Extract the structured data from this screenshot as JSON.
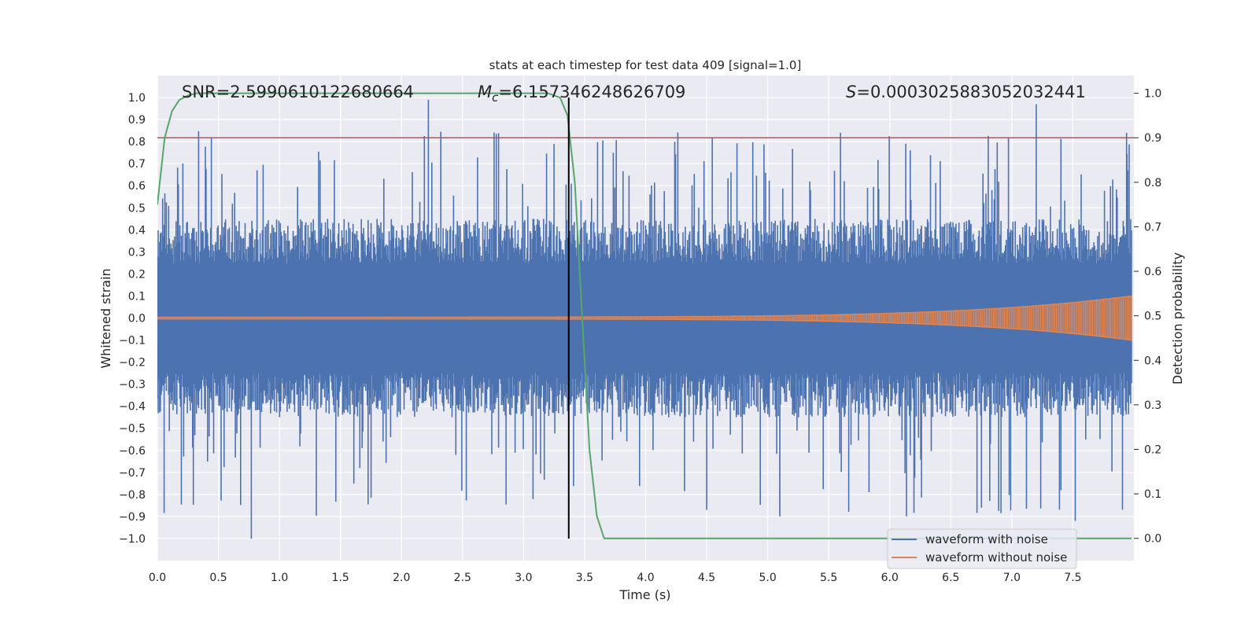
{
  "chart_data": {
    "type": "line",
    "title": "stats at each timestep for test data 409 [signal=1.0]",
    "xlabel": "Time (s)",
    "ylabel": "Whitened strain",
    "y2label": "Detection probability",
    "xlim": [
      0.0,
      8.0
    ],
    "ylim": [
      -1.1,
      1.1
    ],
    "y2lim": [
      -0.05,
      1.04
    ],
    "xticks": [
      "0.0",
      "0.5",
      "1.0",
      "1.5",
      "2.0",
      "2.5",
      "3.0",
      "3.5",
      "4.0",
      "4.5",
      "5.0",
      "5.5",
      "6.0",
      "6.5",
      "7.0",
      "7.5"
    ],
    "yticks": [
      "1.0",
      "0.9",
      "0.8",
      "0.7",
      "0.6",
      "0.5",
      "0.4",
      "0.3",
      "0.2",
      "0.1",
      "0.0",
      "−0.1",
      "−0.2",
      "−0.3",
      "−0.4",
      "−0.5",
      "−0.6",
      "−0.7",
      "−0.8",
      "−0.9",
      "−1.0"
    ],
    "y2ticks": [
      "1.0",
      "0.9",
      "0.8",
      "0.7",
      "0.6",
      "0.5",
      "0.4",
      "0.3",
      "0.2",
      "0.1",
      "0.0"
    ],
    "annotations": {
      "snr": "SNR=2.5990610122680664",
      "mc_symbol": "M",
      "mc_sub": "c",
      "mc_value": "=6.157346248626709",
      "s_symbol": "S",
      "s_value": "=0.0003025883052032441"
    },
    "threshold_line": {
      "y2": 0.9,
      "color": "#c44e52"
    },
    "merger_time": 3.37,
    "series": [
      {
        "name": "waveform with noise",
        "color": "#4c72b0",
        "typical_envelope": [
          -0.45,
          0.45
        ],
        "max_abs": 1.0
      },
      {
        "name": "waveform without noise",
        "color": "#dd8452",
        "start_amplitude": 0.004,
        "end_amplitude": 0.1
      },
      {
        "name": "detection probability",
        "color": "#55a868",
        "axis": "y2",
        "x": [
          0.0,
          0.06,
          0.12,
          0.18,
          0.25,
          0.32,
          0.4,
          0.5,
          1.0,
          2.0,
          3.0,
          3.2,
          3.3,
          3.36,
          3.42,
          3.48,
          3.54,
          3.6,
          3.66,
          3.72,
          3.8,
          4.0,
          7.98
        ],
        "y": [
          0.75,
          0.9,
          0.96,
          0.985,
          0.995,
          1.0,
          1.0,
          1.0,
          1.0,
          1.0,
          1.0,
          1.0,
          0.99,
          0.95,
          0.8,
          0.5,
          0.2,
          0.05,
          0.0,
          0.0,
          0.0,
          0.0,
          0.0
        ]
      }
    ],
    "legend": {
      "position": "bottom-right",
      "entries": [
        {
          "label": "waveform with noise",
          "color": "#4c72b0"
        },
        {
          "label": "waveform without noise",
          "color": "#dd8452"
        }
      ]
    }
  }
}
